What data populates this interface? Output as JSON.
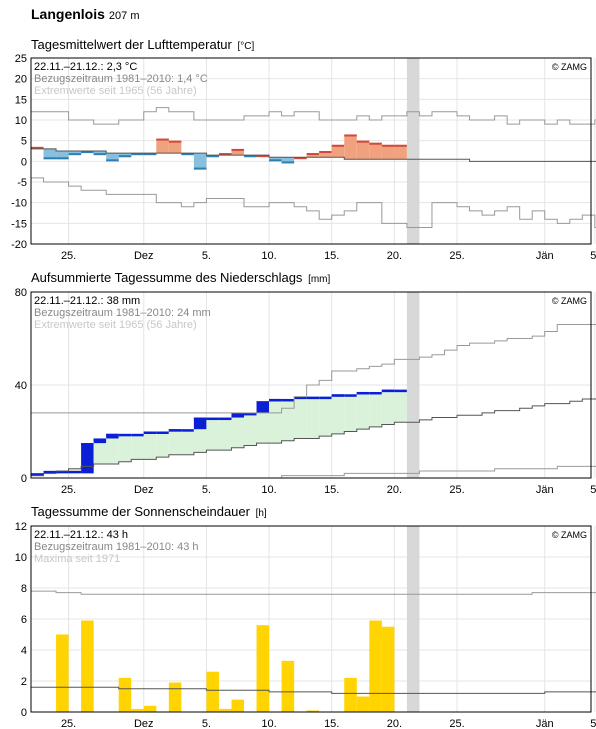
{
  "header": {
    "station": "Langenlois",
    "altitude": "207 m"
  },
  "colors": {
    "above_normal_temp": "#f0a27e",
    "below_normal_temp": "#86c0de",
    "precip_actual": "#0a1fd6",
    "precip_normal_fill": "#d9f2d9",
    "sunshine": "#ffd400",
    "today_band": "#d8d8d8"
  },
  "chart_data": [
    {
      "type": "bar",
      "title": "Tagesmittelwert der Lufttemperatur",
      "unit": "[°C]",
      "info": {
        "current": "22.11.–21.12.: 2,3 °C",
        "reference": "Bezugszeitraum 1981–2010: 1,4 °C",
        "extremes": "Extremwerte seit 1965 (56 Jahre)"
      },
      "watermark": "© ZAMG",
      "ylim": [
        -20,
        25
      ],
      "yticks": [
        -20,
        -15,
        -10,
        -5,
        0,
        5,
        10,
        15,
        20,
        25
      ],
      "xticks": [
        {
          "day": 4,
          "label": "25."
        },
        {
          "day": 10,
          "label": "Dez"
        },
        {
          "day": 15,
          "label": "5."
        },
        {
          "day": 20,
          "label": "10."
        },
        {
          "day": 25,
          "label": "15."
        },
        {
          "day": 30,
          "label": "20."
        },
        {
          "day": 35,
          "label": "25."
        },
        {
          "day": 42,
          "label": "Jän"
        },
        {
          "day": 46,
          "label": "5."
        }
      ],
      "x_days": [
        1,
        2,
        3,
        4,
        5,
        6,
        7,
        8,
        9,
        10,
        11,
        12,
        13,
        14,
        15,
        16,
        17,
        18,
        19,
        20,
        21,
        22,
        23,
        24,
        25,
        26,
        27,
        28,
        29,
        30
      ],
      "values": [
        3.5,
        0.5,
        0.5,
        1.5,
        2,
        1.5,
        0,
        1,
        1.5,
        1.5,
        5.5,
        5,
        1.5,
        -2,
        1,
        2,
        3,
        1,
        1.5,
        0,
        -0.5,
        1,
        2,
        2.5,
        4,
        6.5,
        5,
        4.5,
        4,
        4
      ],
      "normal": [
        3,
        3,
        2.5,
        2.5,
        2.5,
        2.5,
        2,
        2,
        2,
        2,
        2,
        2,
        2,
        2,
        1.5,
        1.5,
        1.5,
        1.5,
        1.5,
        1,
        1,
        1,
        1,
        1,
        1,
        0.5,
        0.5,
        0.5,
        0.5,
        0.5
      ],
      "normal_after": [
        0.5,
        0.5,
        0.5,
        0.5,
        0.5,
        0,
        0,
        0,
        0,
        0,
        0,
        0,
        0,
        0,
        0,
        0,
        -0.5
      ],
      "max_record": [
        12,
        12,
        12,
        10,
        10,
        9,
        9,
        10,
        10,
        12,
        13,
        12,
        12,
        10,
        10,
        10,
        10,
        11,
        11,
        12,
        11,
        12,
        12,
        10,
        10,
        10,
        11,
        10,
        11,
        11,
        12,
        11,
        12,
        12,
        11,
        10,
        10,
        11,
        9,
        10,
        10,
        9,
        10,
        9,
        9,
        10,
        11
      ],
      "min_record": [
        -4,
        -5,
        -5,
        -6,
        -7,
        -7,
        -8,
        -8,
        -8,
        -8,
        -10,
        -10,
        -11,
        -10,
        -9,
        -9,
        -9,
        -11,
        -11,
        -10,
        -10,
        -11,
        -12,
        -14,
        -13,
        -12,
        -10,
        -10,
        -15,
        -15,
        -16,
        -16,
        -10,
        -10,
        -11,
        -12,
        -13,
        -12,
        -11,
        -14,
        -12,
        -14,
        -15,
        -14,
        -13,
        -16,
        -17
      ]
    },
    {
      "type": "area",
      "title": "Aufsummierte Tagessumme des Niederschlags",
      "unit": "[mm]",
      "info": {
        "current": "22.11.–21.12.: 38 mm",
        "reference": "Bezugszeitraum 1981–2010: 24 mm",
        "extremes": "Extremwerte seit 1965 (56 Jahre)"
      },
      "watermark": "© ZAMG",
      "ylim": [
        0,
        80
      ],
      "yticks": [
        0,
        40,
        80
      ],
      "x_days": [
        1,
        2,
        3,
        4,
        5,
        6,
        7,
        8,
        9,
        10,
        11,
        12,
        13,
        14,
        15,
        16,
        17,
        18,
        19,
        20,
        21,
        22,
        23,
        24,
        25,
        26,
        27,
        28,
        29,
        30
      ],
      "values": [
        1,
        2,
        2,
        2,
        15,
        17,
        19,
        19,
        19,
        20,
        20,
        21,
        21,
        26,
        26,
        26,
        28,
        28,
        33,
        34,
        34,
        35,
        35,
        35,
        36,
        36,
        37,
        37,
        38,
        38
      ],
      "normal": [
        1,
        2,
        3,
        4,
        5,
        6,
        6,
        7,
        8,
        8,
        9,
        10,
        10,
        11,
        12,
        12,
        13,
        14,
        15,
        15,
        16,
        17,
        17,
        18,
        19,
        20,
        21,
        22,
        23,
        24
      ],
      "normal_after": [
        24,
        25,
        26,
        26,
        27,
        27,
        28,
        29,
        29,
        30,
        31,
        32,
        32,
        33,
        34,
        34,
        35
      ],
      "max_record": [
        28,
        28,
        28,
        28,
        28,
        28,
        28,
        28,
        28,
        28,
        28,
        28,
        28,
        28,
        28,
        28,
        28,
        28,
        28,
        28,
        30,
        35,
        40,
        42,
        46,
        46,
        47,
        48,
        49,
        51,
        51,
        52,
        53,
        55,
        57,
        58,
        58,
        59,
        60,
        60,
        61,
        63,
        66,
        66,
        66,
        66,
        66
      ],
      "min_record": [
        0,
        0,
        0,
        0,
        0,
        0,
        0,
        0,
        0,
        0,
        0,
        0,
        0,
        0,
        0,
        0,
        0,
        0,
        0,
        0,
        1,
        1,
        1,
        1,
        1,
        2,
        2,
        2,
        2,
        2,
        2,
        3,
        3,
        3,
        3,
        3,
        3,
        4,
        4,
        4,
        4,
        4,
        5,
        5,
        5,
        5,
        5
      ]
    },
    {
      "type": "bar",
      "title": "Tagessumme der Sonnenscheindauer",
      "unit": "[h]",
      "info": {
        "current": "22.11.–21.12.: 43 h",
        "reference": "Bezugszeitraum 1981–2010: 43 h",
        "extremes": "Maxima seit 1971"
      },
      "watermark": "© ZAMG",
      "ylim": [
        0,
        12
      ],
      "yticks": [
        0,
        2,
        4,
        6,
        8,
        10,
        12
      ],
      "x_days": [
        1,
        2,
        3,
        4,
        5,
        6,
        7,
        8,
        9,
        10,
        11,
        12,
        13,
        14,
        15,
        16,
        17,
        18,
        19,
        20,
        21,
        22,
        23,
        24,
        25,
        26,
        27,
        28,
        29,
        30
      ],
      "values": [
        0,
        0,
        5,
        0,
        5.9,
        0,
        0,
        2.2,
        0.2,
        0.4,
        0,
        1.9,
        0,
        0,
        2.6,
        0.2,
        0.8,
        0,
        5.6,
        0,
        3.3,
        0,
        0.1,
        0,
        0,
        2.2,
        1,
        5.9,
        5.5,
        0
      ],
      "normal": [
        1.6,
        1.6,
        1.6,
        1.6,
        1.6,
        1.6,
        1.6,
        1.5,
        1.5,
        1.5,
        1.5,
        1.5,
        1.5,
        1.5,
        1.4,
        1.4,
        1.4,
        1.4,
        1.4,
        1.3,
        1.3,
        1.3,
        1.3,
        1.3,
        1.2,
        1.2,
        1.2,
        1.2,
        1.2,
        1.2
      ],
      "normal_after": [
        1.2,
        1.2,
        1.2,
        1.2,
        1.2,
        1.2,
        1.2,
        1.2,
        1.2,
        1.2,
        1.2,
        1.3,
        1.3,
        1.3,
        1.3,
        1.3,
        1.3
      ],
      "max_record": [
        7.8,
        7.8,
        7.7,
        7.7,
        7.6,
        7.6,
        7.6,
        7.6,
        7.6,
        7.6,
        7.6,
        7.6,
        7.6,
        7.6,
        7.6,
        7.6,
        7.6,
        7.6,
        7.6,
        7.6,
        7.6,
        7.6,
        7.6,
        7.6,
        7.6,
        7.6,
        7.6,
        7.6,
        7.6,
        7.6,
        7.6,
        7.6,
        7.6,
        7.6,
        7.6,
        7.6,
        7.6,
        7.6,
        7.6,
        7.6,
        7.7,
        7.7,
        7.7,
        7.7,
        7.7,
        7.7,
        7.7
      ]
    }
  ]
}
